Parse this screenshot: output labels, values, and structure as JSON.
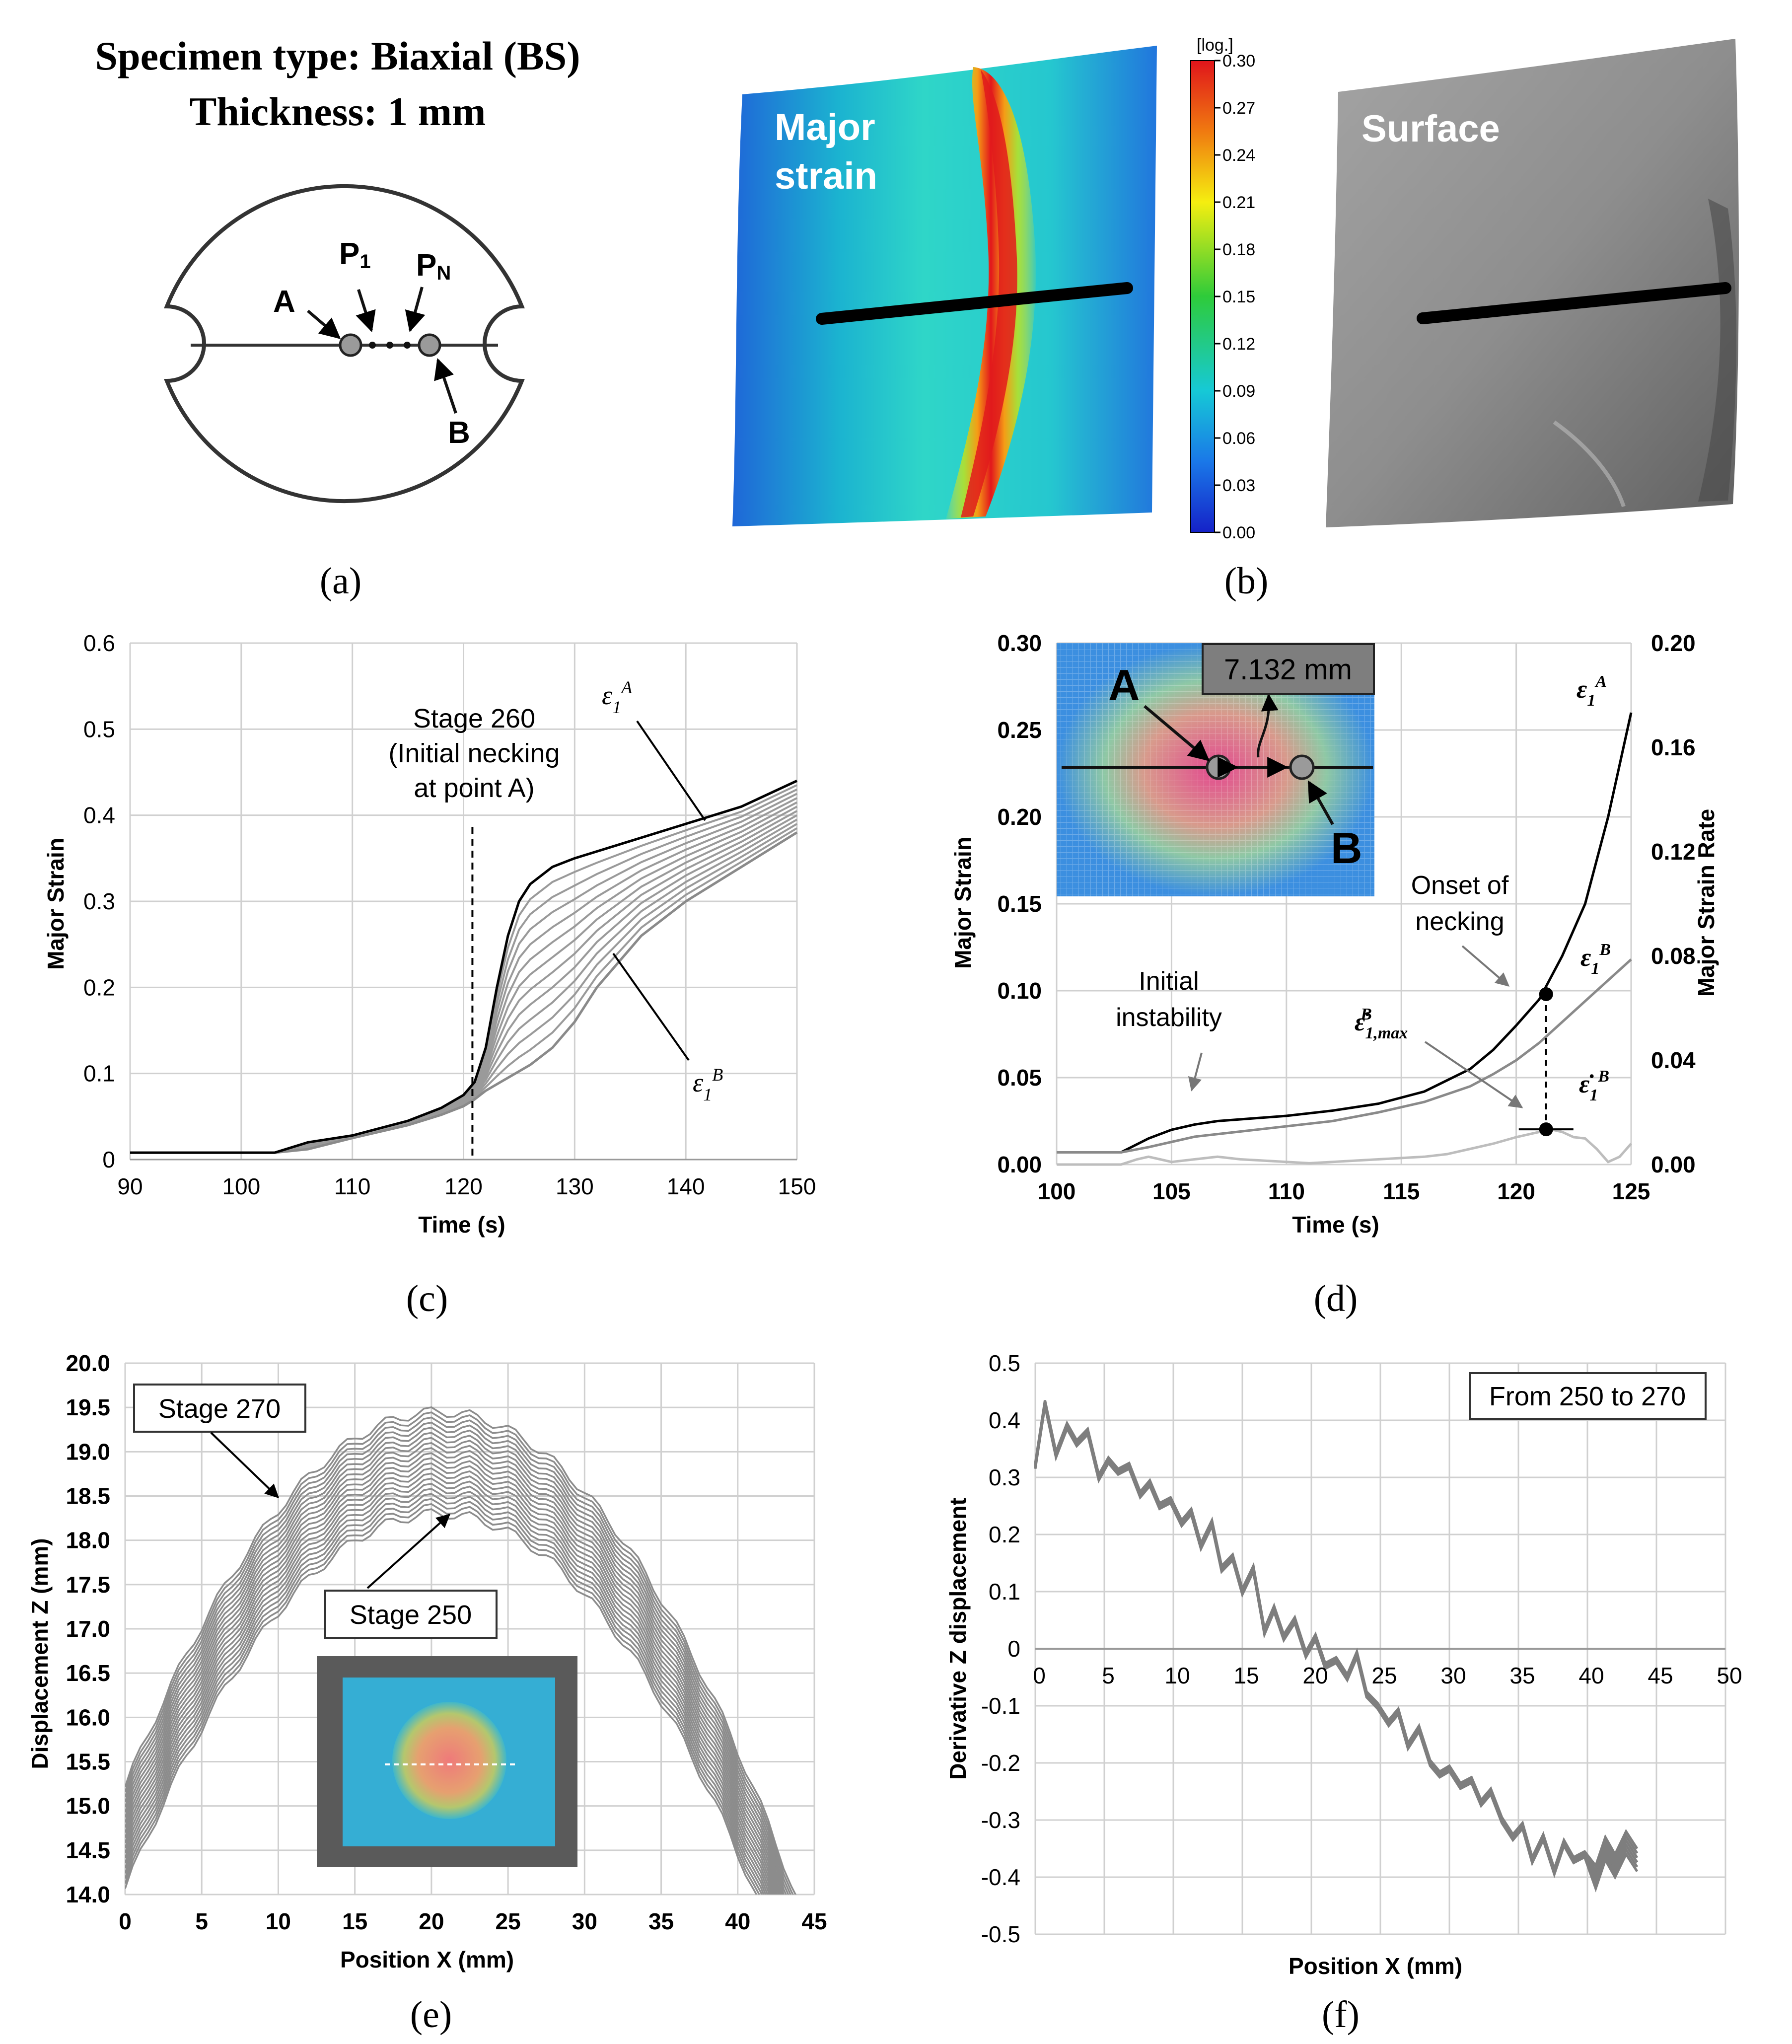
{
  "panel_a": {
    "title_line1": "Specimen type: Biaxial (BS)",
    "title_line2": "Thickness: 1 mm",
    "label_A": "A",
    "label_B": "B",
    "label_P": "P",
    "label_P_sub1": "1",
    "label_P_subN": "N",
    "caption": "(a)"
  },
  "panel_b": {
    "major_line1": "Major",
    "major_line2": "strain",
    "surface": "Surface",
    "colorbar_unit": "[log.]",
    "colorbar_ticks": [
      "0.30",
      "0.27",
      "0.24",
      "0.21",
      "0.18",
      "0.15",
      "0.12",
      "0.09",
      "0.06",
      "0.03",
      "0.00"
    ],
    "caption": "(b)"
  },
  "chart_data": [
    {
      "id": "c",
      "type": "line",
      "xlabel": "Time (s)",
      "ylabel": "Major Strain",
      "xlim": [
        90,
        150
      ],
      "ylim": [
        0,
        0.6
      ],
      "xticks": [
        "90",
        "100",
        "110",
        "120",
        "130",
        "140",
        "150"
      ],
      "yticks": [
        "0",
        "0.1",
        "0.2",
        "0.3",
        "0.4",
        "0.5",
        "0.6"
      ],
      "annotation_line1": "Stage 260",
      "annotation_line2": "(Initial necking",
      "annotation_line3": "at point A)",
      "stage_time": 120.8,
      "label_A": "ε1A",
      "label_B": "ε1B",
      "series": [
        {
          "name": "ε1A",
          "x": [
            90,
            103,
            106,
            110,
            115,
            118,
            120,
            121,
            122,
            123,
            124,
            125,
            126,
            128,
            130,
            135,
            140,
            145,
            150
          ],
          "y": [
            0.008,
            0.008,
            0.02,
            0.028,
            0.045,
            0.06,
            0.075,
            0.09,
            0.13,
            0.2,
            0.26,
            0.3,
            0.32,
            0.34,
            0.35,
            0.37,
            0.39,
            0.41,
            0.44
          ]
        },
        {
          "name": "ε1B",
          "x": [
            90,
            103,
            106,
            110,
            115,
            118,
            120,
            121,
            122,
            124,
            126,
            128,
            130,
            132,
            134,
            136,
            138,
            140,
            145,
            150
          ],
          "y": [
            0.008,
            0.008,
            0.012,
            0.025,
            0.04,
            0.052,
            0.062,
            0.07,
            0.08,
            0.095,
            0.11,
            0.13,
            0.16,
            0.2,
            0.23,
            0.26,
            0.28,
            0.3,
            0.34,
            0.38
          ]
        }
      ],
      "caption": "(c)"
    },
    {
      "id": "d",
      "type": "line",
      "xlabel": "Time (s)",
      "ylabel": "Major Strain",
      "y2label": "Major Strain Rate",
      "xlim": [
        100,
        125
      ],
      "ylim": [
        0,
        0.3
      ],
      "y2lim": [
        0,
        0.2
      ],
      "xticks": [
        "100",
        "105",
        "110",
        "115",
        "120",
        "125"
      ],
      "yticks": [
        "0.00",
        "0.05",
        "0.10",
        "0.15",
        "0.20",
        "0.25",
        "0.30"
      ],
      "y2ticks": [
        "0.00",
        "0.04",
        "0.08",
        "0.12",
        "0.16",
        "0.20"
      ],
      "inset_distance": "7.132 mm",
      "inset_A": "A",
      "inset_B": "B",
      "onset_line1": "Onset of",
      "onset_line2": "necking",
      "initial_line1": "Initial",
      "initial_line2": "instability",
      "label_eps1A": "ε1A",
      "label_eps1B": "ε1B",
      "label_rate_max": "ε̇1,maxB",
      "label_rate": "ε̇1B",
      "onset_time": 121.3,
      "onset_strain": 0.098,
      "max_rate": 0.0135,
      "series": [
        {
          "name": "ε1A",
          "axis": "left",
          "x": [
            100,
            102.8,
            104,
            105,
            106,
            107,
            108,
            110,
            112,
            114,
            116,
            118,
            119,
            120,
            121,
            122,
            123,
            124,
            125
          ],
          "y": [
            0.007,
            0.007,
            0.015,
            0.02,
            0.023,
            0.025,
            0.026,
            0.028,
            0.031,
            0.035,
            0.042,
            0.055,
            0.066,
            0.08,
            0.095,
            0.12,
            0.15,
            0.2,
            0.26
          ]
        },
        {
          "name": "ε1B",
          "axis": "left",
          "x": [
            100,
            102.8,
            104,
            105,
            106,
            108,
            110,
            112,
            114,
            116,
            118,
            119,
            120,
            121,
            122,
            123,
            124,
            125
          ],
          "y": [
            0.007,
            0.007,
            0.01,
            0.013,
            0.016,
            0.019,
            0.022,
            0.025,
            0.03,
            0.036,
            0.045,
            0.052,
            0.06,
            0.07,
            0.082,
            0.094,
            0.106,
            0.118
          ]
        },
        {
          "name": "ε̇1B",
          "axis": "right",
          "x": [
            100,
            102.8,
            103.5,
            104,
            104.5,
            105,
            106,
            107,
            108,
            109,
            110,
            111,
            112,
            113,
            114,
            115,
            116,
            117,
            118,
            119,
            120,
            121,
            121.5,
            122,
            122.5,
            123,
            123.5,
            124,
            124.5,
            125
          ],
          "y": [
            0,
            0,
            0.002,
            0.003,
            0.002,
            0.001,
            0.002,
            0.003,
            0.002,
            0.0015,
            0.001,
            0.0005,
            0.001,
            0.0015,
            0.002,
            0.0025,
            0.003,
            0.004,
            0.006,
            0.008,
            0.0105,
            0.0125,
            0.0135,
            0.0125,
            0.0105,
            0.01,
            0.006,
            0.001,
            0.003,
            0.008
          ]
        }
      ],
      "caption": "(d)"
    },
    {
      "id": "e",
      "type": "line",
      "xlabel": "Position X (mm)",
      "ylabel": "Displacement Z (mm)",
      "xlim": [
        0,
        45
      ],
      "ylim": [
        14,
        20
      ],
      "xticks": [
        "0",
        "5",
        "10",
        "15",
        "20",
        "25",
        "30",
        "35",
        "40",
        "45"
      ],
      "yticks": [
        "14.0",
        "14.5",
        "15.0",
        "15.5",
        "16.0",
        "16.5",
        "17.0",
        "17.5",
        "18.0",
        "18.5",
        "19.0",
        "19.5",
        "20.0"
      ],
      "stage_top": "Stage 270",
      "stage_bottom": "Stage 250",
      "num_curves": 21,
      "peak_x": 20.5,
      "peak_stage250": 18.3,
      "peak_stage270": 19.45,
      "caption": "(e)"
    },
    {
      "id": "f",
      "type": "line",
      "xlabel": "Position X (mm)",
      "ylabel": "Derivative Z displacement",
      "xlim": [
        0,
        50
      ],
      "ylim": [
        -0.5,
        0.5
      ],
      "xticks": [
        "0",
        "5",
        "10",
        "15",
        "20",
        "25",
        "30",
        "35",
        "40",
        "45",
        "50"
      ],
      "yticks": [
        "0.5",
        "0.4",
        "0.3",
        "0.2",
        "0.1",
        "0",
        "-0.1",
        "-0.2",
        "-0.3",
        "-0.4",
        "-0.5"
      ],
      "legend": "From 250 to 270",
      "x": [
        0,
        0.7,
        1.5,
        2.3,
        3,
        3.8,
        4.6,
        5.3,
        6,
        6.8,
        7.6,
        8.3,
        9,
        9.8,
        10.6,
        11.3,
        12,
        12.8,
        13.5,
        14.3,
        15,
        15.8,
        16.6,
        17.3,
        18,
        18.8,
        19.6,
        20.3,
        21,
        21.8,
        22.6,
        23.3,
        24,
        24.8,
        25.6,
        26.3,
        27,
        27.8,
        28.6,
        29.3,
        30,
        30.8,
        31.6,
        32.3,
        33,
        33.8,
        34.6,
        35.3,
        36,
        36.8,
        37.6,
        38.3,
        39,
        39.8,
        40.6,
        41.3,
        42,
        42.8,
        43.6
      ],
      "y": [
        0.32,
        0.43,
        0.34,
        0.39,
        0.36,
        0.38,
        0.3,
        0.33,
        0.31,
        0.32,
        0.27,
        0.29,
        0.25,
        0.26,
        0.22,
        0.24,
        0.18,
        0.22,
        0.14,
        0.16,
        0.1,
        0.14,
        0.03,
        0.07,
        0.02,
        0.05,
        -0.01,
        0.02,
        -0.03,
        -0.02,
        -0.05,
        -0.01,
        -0.08,
        -0.1,
        -0.13,
        -0.11,
        -0.17,
        -0.14,
        -0.2,
        -0.22,
        -0.21,
        -0.24,
        -0.23,
        -0.27,
        -0.25,
        -0.3,
        -0.33,
        -0.31,
        -0.37,
        -0.33,
        -0.39,
        -0.34,
        -0.37,
        -0.36,
        -0.4,
        -0.35,
        -0.38,
        -0.34,
        -0.37
      ],
      "caption": "(f)"
    }
  ]
}
